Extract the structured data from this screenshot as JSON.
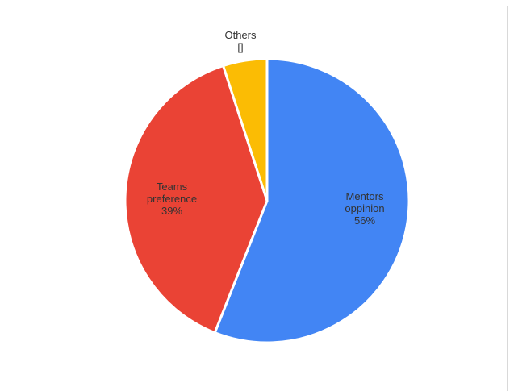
{
  "chart_data": {
    "type": "pie",
    "title": "",
    "slices": [
      {
        "label": "Mentors",
        "label_line2": "oppinion",
        "percent_label": "56%",
        "value": 56,
        "color": "#4285f4"
      },
      {
        "label": "Teams",
        "label_line2": "preference",
        "percent_label": "39%",
        "value": 39,
        "color": "#ea4335"
      },
      {
        "label": "Others",
        "label_line2": "",
        "percent_label": "[]",
        "value": 5,
        "color": "#fbbc04"
      }
    ],
    "start_angle_deg": 0,
    "direction": "clockwise",
    "legend": "none"
  }
}
